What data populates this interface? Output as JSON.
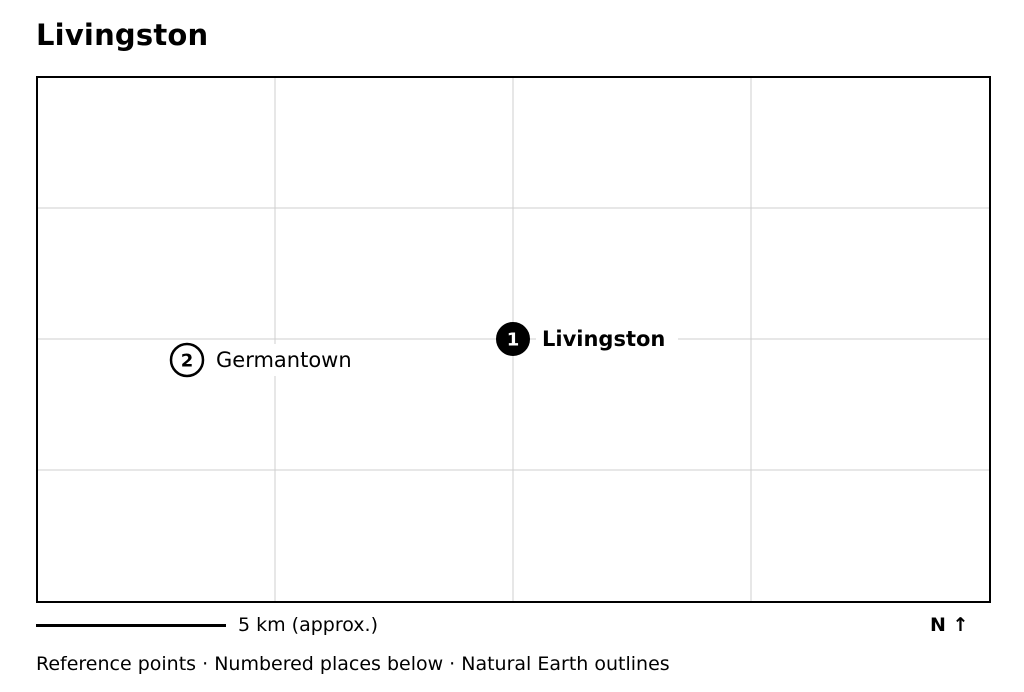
{
  "title": "Livingston",
  "places": [
    {
      "number": "1",
      "name": "Livingston",
      "primary": true
    },
    {
      "number": "2",
      "name": "Germantown",
      "primary": false
    }
  ],
  "scale": {
    "label": "5 km (approx.)"
  },
  "north": {
    "label": "N ↑"
  },
  "footer": {
    "text": "Reference points · Numbered places below · Natural Earth outlines"
  },
  "colors": {
    "frame": "#000000",
    "grid": "#cfcfcf",
    "primary_marker": "#000000",
    "secondary_marker_fill": "#ffffff"
  }
}
